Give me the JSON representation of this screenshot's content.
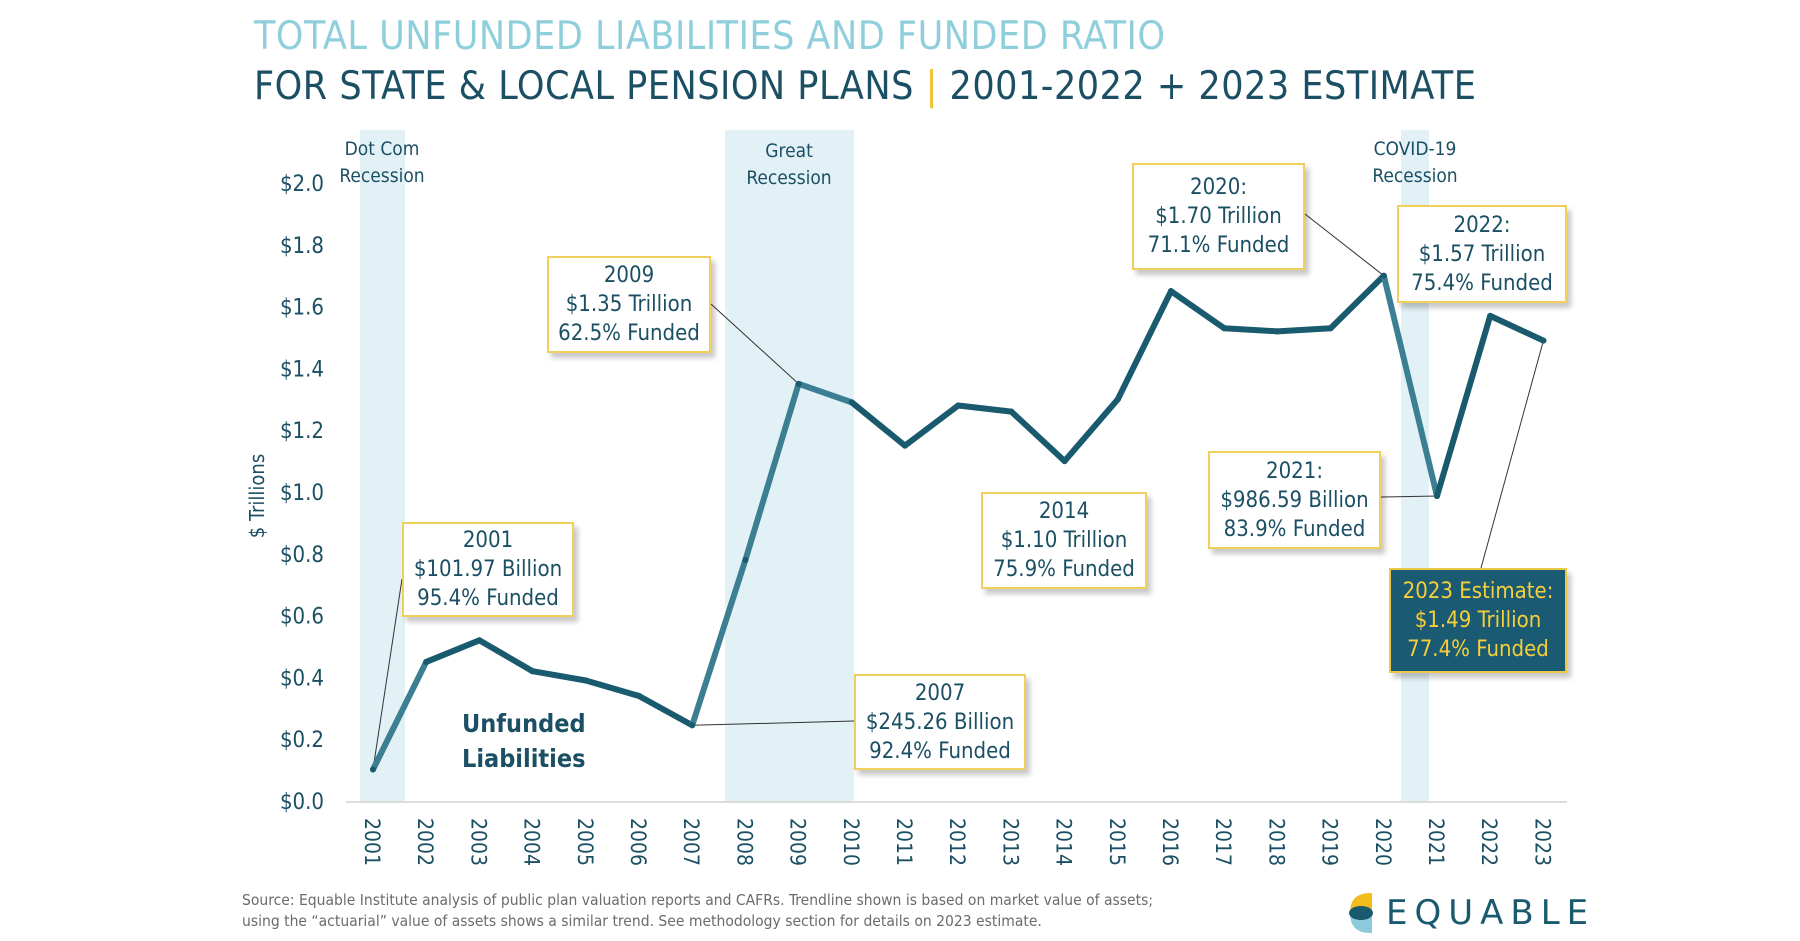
{
  "title": {
    "line1": "TOTAL UNFUNDED LIABILITIES AND FUNDED RATIO",
    "line2_a": "FOR STATE & LOCAL PENSION PLANS",
    "line2_sep": "|",
    "line2_b": "2001-2022 + 2023 ESTIMATE"
  },
  "chart_data": {
    "type": "line",
    "ylabel": "$ Trillions",
    "ylim": [
      0,
      2.0
    ],
    "yticks": [
      "$0.0",
      "$0.2",
      "$0.4",
      "$0.6",
      "$0.8",
      "$1.0",
      "$1.2",
      "$1.4",
      "$1.6",
      "$1.8",
      "$2.0"
    ],
    "x": [
      "2001",
      "2002",
      "2003",
      "2004",
      "2005",
      "2006",
      "2007",
      "2008",
      "2009",
      "2010",
      "2011",
      "2012",
      "2013",
      "2014",
      "2015",
      "2016",
      "2017",
      "2018",
      "2019",
      "2020",
      "2021",
      "2022",
      "2023"
    ],
    "series": [
      {
        "name": "Unfunded Liabilities",
        "values": [
          0.102,
          0.45,
          0.52,
          0.42,
          0.39,
          0.34,
          0.245,
          0.78,
          1.35,
          1.29,
          1.15,
          1.28,
          1.26,
          1.1,
          1.3,
          1.65,
          1.53,
          1.52,
          1.53,
          1.7,
          0.987,
          1.57,
          1.49
        ]
      }
    ],
    "recessions": [
      {
        "label1": "Dot Com",
        "label2": "Recession",
        "from": 2001,
        "to": 2001.8
      },
      {
        "label1": "Great",
        "label2": "Recession",
        "from": 2007.6,
        "to": 2010
      },
      {
        "label1": "COVID-19",
        "label2": "Recession",
        "from": 2020.3,
        "to": 2020.8
      }
    ],
    "annotations": [
      {
        "year": "2001",
        "l1": "2001",
        "l2": "$101.97 Billion",
        "l3": "95.4% Funded"
      },
      {
        "year": "2007",
        "l1": "2007",
        "l2": "$245.26 Billion",
        "l3": "92.4% Funded"
      },
      {
        "year": "2009",
        "l1": "2009",
        "l2": "$1.35 Trillion",
        "l3": "62.5% Funded"
      },
      {
        "year": "2014",
        "l1": "2014",
        "l2": "$1.10 Trillion",
        "l3": "75.9% Funded"
      },
      {
        "year": "2020",
        "l1": "2020:",
        "l2": "$1.70 Trillion",
        "l3": "71.1% Funded"
      },
      {
        "year": "2021",
        "l1": "2021:",
        "l2": "$986.59 Billion",
        "l3": "83.9% Funded"
      },
      {
        "year": "2022",
        "l1": "2022:",
        "l2": "$1.57 Trillion",
        "l3": "75.4% Funded"
      },
      {
        "year": "2023",
        "l1": "2023 Estimate:",
        "l2": "$1.49 Trillion",
        "l3": "77.4% Funded"
      }
    ],
    "series_label_1": "Unfunded",
    "series_label_2": "Liabilities",
    "colors": {
      "line": "#1a5a6e",
      "line_recession": "#3d7f92",
      "band": "#e1f1f6",
      "box_border": "#f0cf5a",
      "estimate_bg": "#1a5a72",
      "estimate_text": "#f5cf3a"
    },
    "grid": false
  },
  "footer": {
    "line1": "Source: Equable Institute analysis of public plan valuation reports and CAFRs. Trendline shown is based on market value of assets;",
    "line2": "using the “actuarial” value of assets shows a similar trend.  See methodology section for details on 2023 estimate."
  },
  "logo": {
    "text": "EQUABLE"
  }
}
